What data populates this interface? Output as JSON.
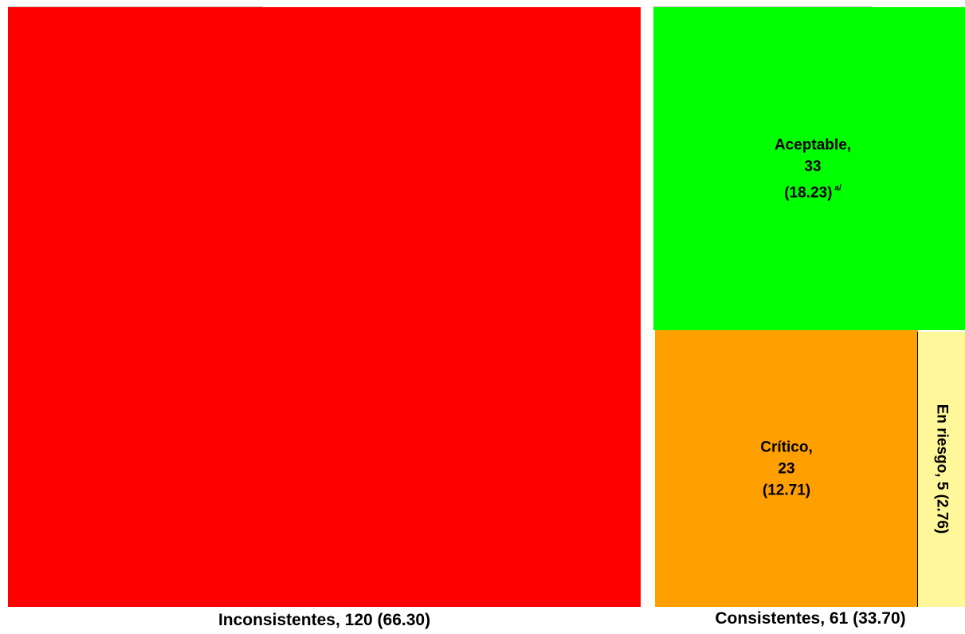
{
  "chart_data": {
    "type": "treemap",
    "groups": [
      {
        "label": "Inconsistentes, 120 (66.30)",
        "name": "Inconsistentes",
        "value": 120,
        "percent": 66.3,
        "color": "#ff0000",
        "children": []
      },
      {
        "label": "Consistentes, 61 (33.70)",
        "name": "Consistentes",
        "value": 61,
        "percent": 33.7,
        "children": [
          {
            "name": "Aceptable",
            "lines": [
              "Aceptable,",
              "33",
              "(18.23)"
            ],
            "footnote": "a/",
            "value": 33,
            "percent": 18.23,
            "color": "#00ff00"
          },
          {
            "name": "Crítico",
            "lines": [
              "Crítico,",
              "23",
              "(12.71)"
            ],
            "value": 23,
            "percent": 12.71,
            "color": "#ffa000"
          },
          {
            "name": "En riesgo",
            "lines": [
              "En riesgo, 5 (2.76)"
            ],
            "value": 5,
            "percent": 2.76,
            "color": "#fff799"
          }
        ]
      }
    ]
  }
}
